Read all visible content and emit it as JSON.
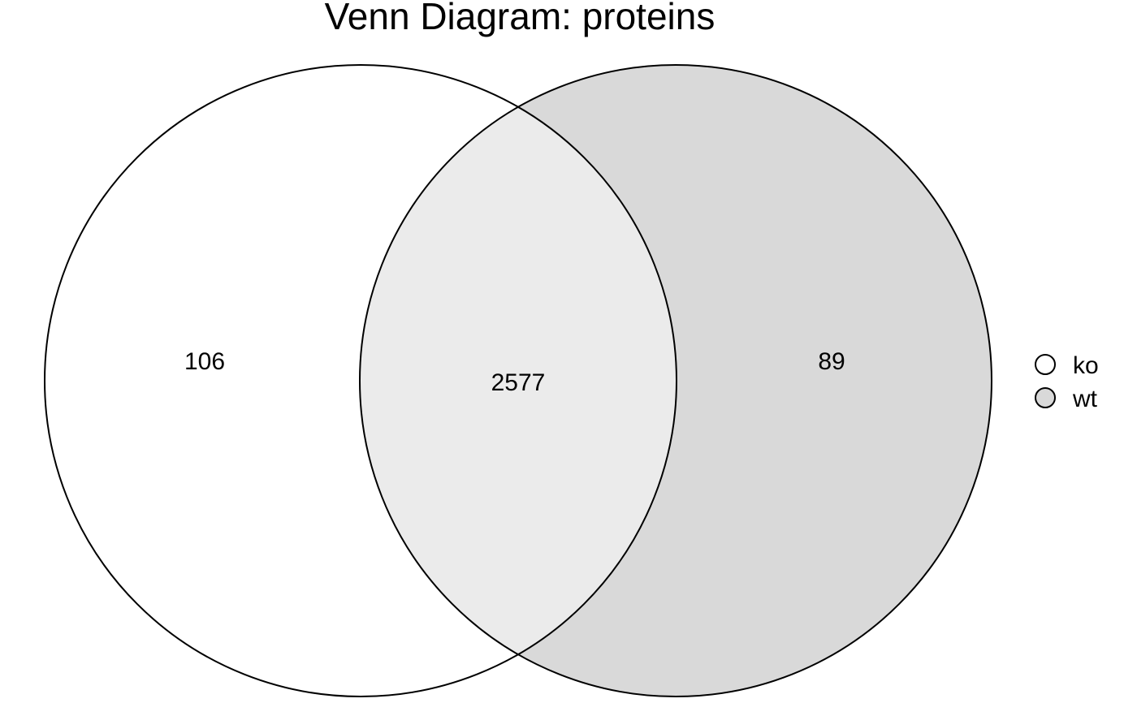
{
  "title": "Venn Diagram: proteins",
  "sets": [
    {
      "name": "ko",
      "color": "#ffffff"
    },
    {
      "name": "wt",
      "color": "#d9d9d9"
    }
  ],
  "intersection_color": "#ebebeb",
  "outline_color": "#000000",
  "regions": {
    "ko_only": "106",
    "both": "2577",
    "wt_only": "89"
  },
  "legend": {
    "items": [
      {
        "label": "ko",
        "color": "#ffffff"
      },
      {
        "label": "wt",
        "color": "#d9d9d9"
      }
    ]
  }
}
